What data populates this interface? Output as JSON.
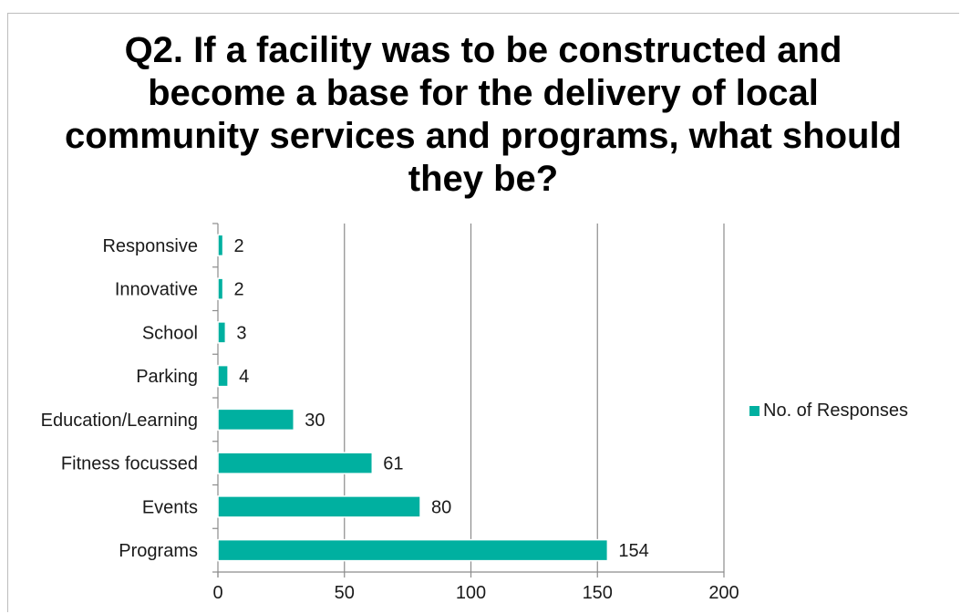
{
  "chart_data": {
    "type": "bar",
    "orientation": "horizontal",
    "title": "Q2. If a facility was to be constructed and become a base for the delivery of local community services and programs, what should they be?",
    "categories": [
      "Responsive",
      "Innovative",
      "School",
      "Parking",
      "Education/Learning",
      "Fitness focussed",
      "Events",
      "Programs"
    ],
    "series": [
      {
        "name": "No. of Responses",
        "values": [
          2,
          2,
          3,
          4,
          30,
          61,
          80,
          154
        ],
        "color": "#00b0a0"
      }
    ],
    "xlim": [
      0,
      200
    ],
    "xticks": [
      "0",
      "50",
      "100",
      "150",
      "200"
    ],
    "xlabel": "",
    "ylabel": "",
    "grid": "vertical",
    "legend_position": "right"
  }
}
